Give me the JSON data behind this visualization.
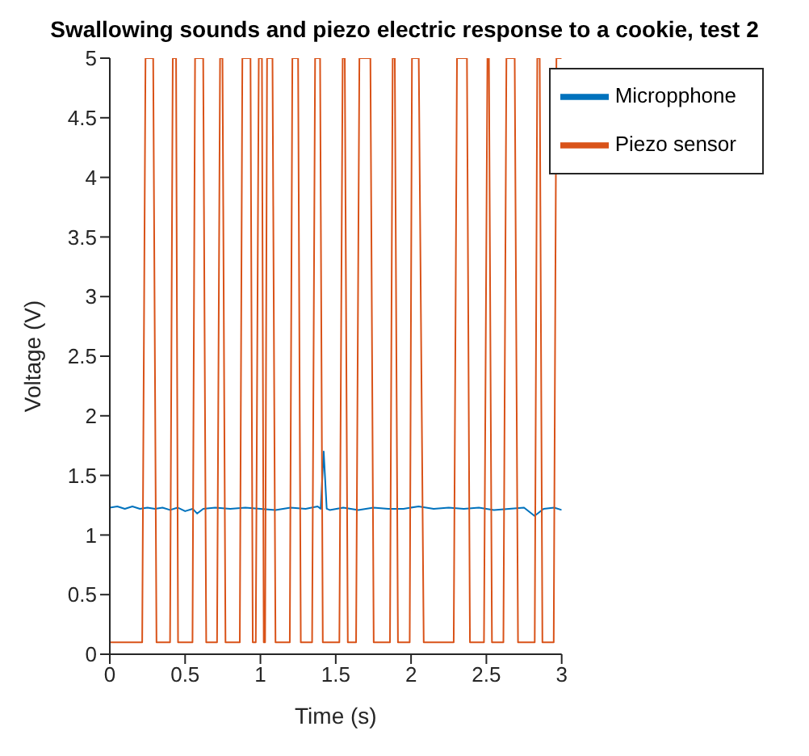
{
  "chart_data": {
    "type": "line",
    "title": "Swallowing sounds and piezo electric response to a cookie, test 2",
    "xlabel": "Time (s)",
    "ylabel": "Voltage (V)",
    "xlim": [
      0,
      3
    ],
    "xticks": [
      0,
      0.5,
      1,
      1.5,
      2,
      2.5,
      3
    ],
    "ylim": [
      0,
      5
    ],
    "yticks": [
      0,
      0.5,
      1,
      1.5,
      2,
      2.5,
      3,
      3.5,
      4,
      4.5,
      5
    ],
    "grid": false,
    "legend": "top right",
    "series": [
      {
        "name": "Micropphone",
        "color": "#0072bd",
        "x": [
          0,
          0.05,
          0.1,
          0.15,
          0.2,
          0.25,
          0.3,
          0.35,
          0.4,
          0.45,
          0.5,
          0.55,
          0.58,
          0.62,
          0.7,
          0.8,
          0.9,
          1,
          1.1,
          1.2,
          1.3,
          1.38,
          1.4,
          1.42,
          1.44,
          1.46,
          1.55,
          1.65,
          1.75,
          1.85,
          1.95,
          2.05,
          2.15,
          2.25,
          2.35,
          2.45,
          2.55,
          2.65,
          2.75,
          2.82,
          2.88,
          2.95,
          3
        ],
        "values": [
          1.23,
          1.24,
          1.22,
          1.24,
          1.22,
          1.23,
          1.22,
          1.23,
          1.21,
          1.23,
          1.2,
          1.22,
          1.18,
          1.22,
          1.23,
          1.22,
          1.23,
          1.22,
          1.21,
          1.23,
          1.22,
          1.24,
          1.22,
          1.7,
          1.22,
          1.21,
          1.23,
          1.21,
          1.23,
          1.22,
          1.22,
          1.24,
          1.22,
          1.23,
          1.22,
          1.23,
          1.21,
          1.22,
          1.23,
          1.16,
          1.22,
          1.23,
          1.21
        ]
      },
      {
        "name": "Piezo sensor",
        "color": "#d95319",
        "x": [
          0,
          0.215,
          0.237,
          0.288,
          0.31,
          0.4,
          0.418,
          0.44,
          0.453,
          0.549,
          0.566,
          0.62,
          0.64,
          0.712,
          0.732,
          0.748,
          0.768,
          0.863,
          0.88,
          0.934,
          0.949,
          0.969,
          0.989,
          1.01,
          1.022,
          1.031,
          1.044,
          1.08,
          1.1,
          1.195,
          1.212,
          1.25,
          1.268,
          1.343,
          1.363,
          1.396,
          1.414,
          1.524,
          1.546,
          1.56,
          1.58,
          1.635,
          1.657,
          1.73,
          1.752,
          1.86,
          1.878,
          1.892,
          1.913,
          1.991,
          2.006,
          2.051,
          2.084,
          2.283,
          2.305,
          2.371,
          2.391,
          2.484,
          2.507,
          2.517,
          2.537,
          2.613,
          2.633,
          2.688,
          2.71,
          2.821,
          2.838,
          2.854,
          2.872,
          2.947,
          2.965,
          3
        ],
        "values": [
          0.1,
          0.1,
          5,
          5,
          0.1,
          0.1,
          5,
          5,
          0.1,
          0.1,
          5,
          5,
          0.1,
          0.1,
          5,
          5,
          0.1,
          0.1,
          5,
          5,
          0.1,
          0.1,
          5,
          5,
          0.1,
          0.1,
          5,
          5,
          0.1,
          0.1,
          5,
          5,
          0.1,
          0.1,
          5,
          5,
          0.1,
          0.1,
          5,
          5,
          0.1,
          0.1,
          5,
          5,
          0.1,
          0.1,
          5,
          5,
          0.1,
          0.1,
          5,
          5,
          0.1,
          0.1,
          5,
          5,
          0.1,
          0.1,
          5,
          5,
          0.1,
          0.1,
          5,
          5,
          0.1,
          0.1,
          5,
          5,
          0.1,
          0.1,
          5,
          5
        ]
      }
    ]
  }
}
